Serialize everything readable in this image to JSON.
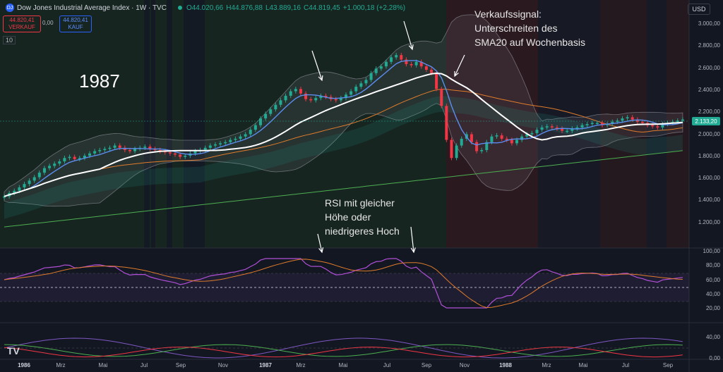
{
  "header": {
    "symbol_badge": "DJ",
    "title": "Dow Jones Industrial Average Index · 1W · TVC",
    "open": "O44.020,66",
    "high": "H44.876,88",
    "low": "L43.889,16",
    "close": "C44.819,45",
    "change": "+1.000,18 (+2,28%)"
  },
  "trade": {
    "sell_price": "44.820,41",
    "sell_label": "VERKAUF",
    "spread": "0,00",
    "buy_price": "44.820,41",
    "buy_label": "KAUF"
  },
  "indicator_count": "10",
  "currency": "USD",
  "price_axis": [
    "3.000,00",
    "2.800,00",
    "2.600,00",
    "2.400,00",
    "2.200,00",
    "2.000,00",
    "1.800,00",
    "1.600,00",
    "1.400,00",
    "1.200,00"
  ],
  "last_price": "2.133,20",
  "rsi_axis": [
    "100,00",
    "80,00",
    "60,00",
    "40,00",
    "20,00"
  ],
  "osc_axis": [
    "40,00",
    "0,00"
  ],
  "time_axis": [
    "1986",
    "Mrz",
    "Mai",
    "Jul",
    "Sep",
    "Nov",
    "1987",
    "Mrz",
    "Mai",
    "Jul",
    "Sep",
    "Nov",
    "1988",
    "Mrz",
    "Mai",
    "Jul",
    "Sep"
  ],
  "annotations": {
    "year": "1987",
    "sell_signal_line1": "Verkaufssignal:",
    "sell_signal_line2": "Unterschreiten des",
    "sell_signal_line3": "SMA20 auf Wochenbasis",
    "rsi_line1": "RSI mit gleicher",
    "rsi_line2": "Höhe oder",
    "rsi_line3": "niedrigeres Hoch"
  },
  "colors": {
    "up": "#22ab94",
    "down": "#f23645",
    "sma20": "#ffffff",
    "fast_ma": "#5b8def",
    "mid_ma": "#e07b2b",
    "slow_ma": "#4caf50",
    "rsi": "#b04fd6"
  },
  "icons": {
    "symbol": "index-badge-icon",
    "live": "market-open-dot-icon",
    "tradingview": "tradingview-logo-icon"
  }
}
